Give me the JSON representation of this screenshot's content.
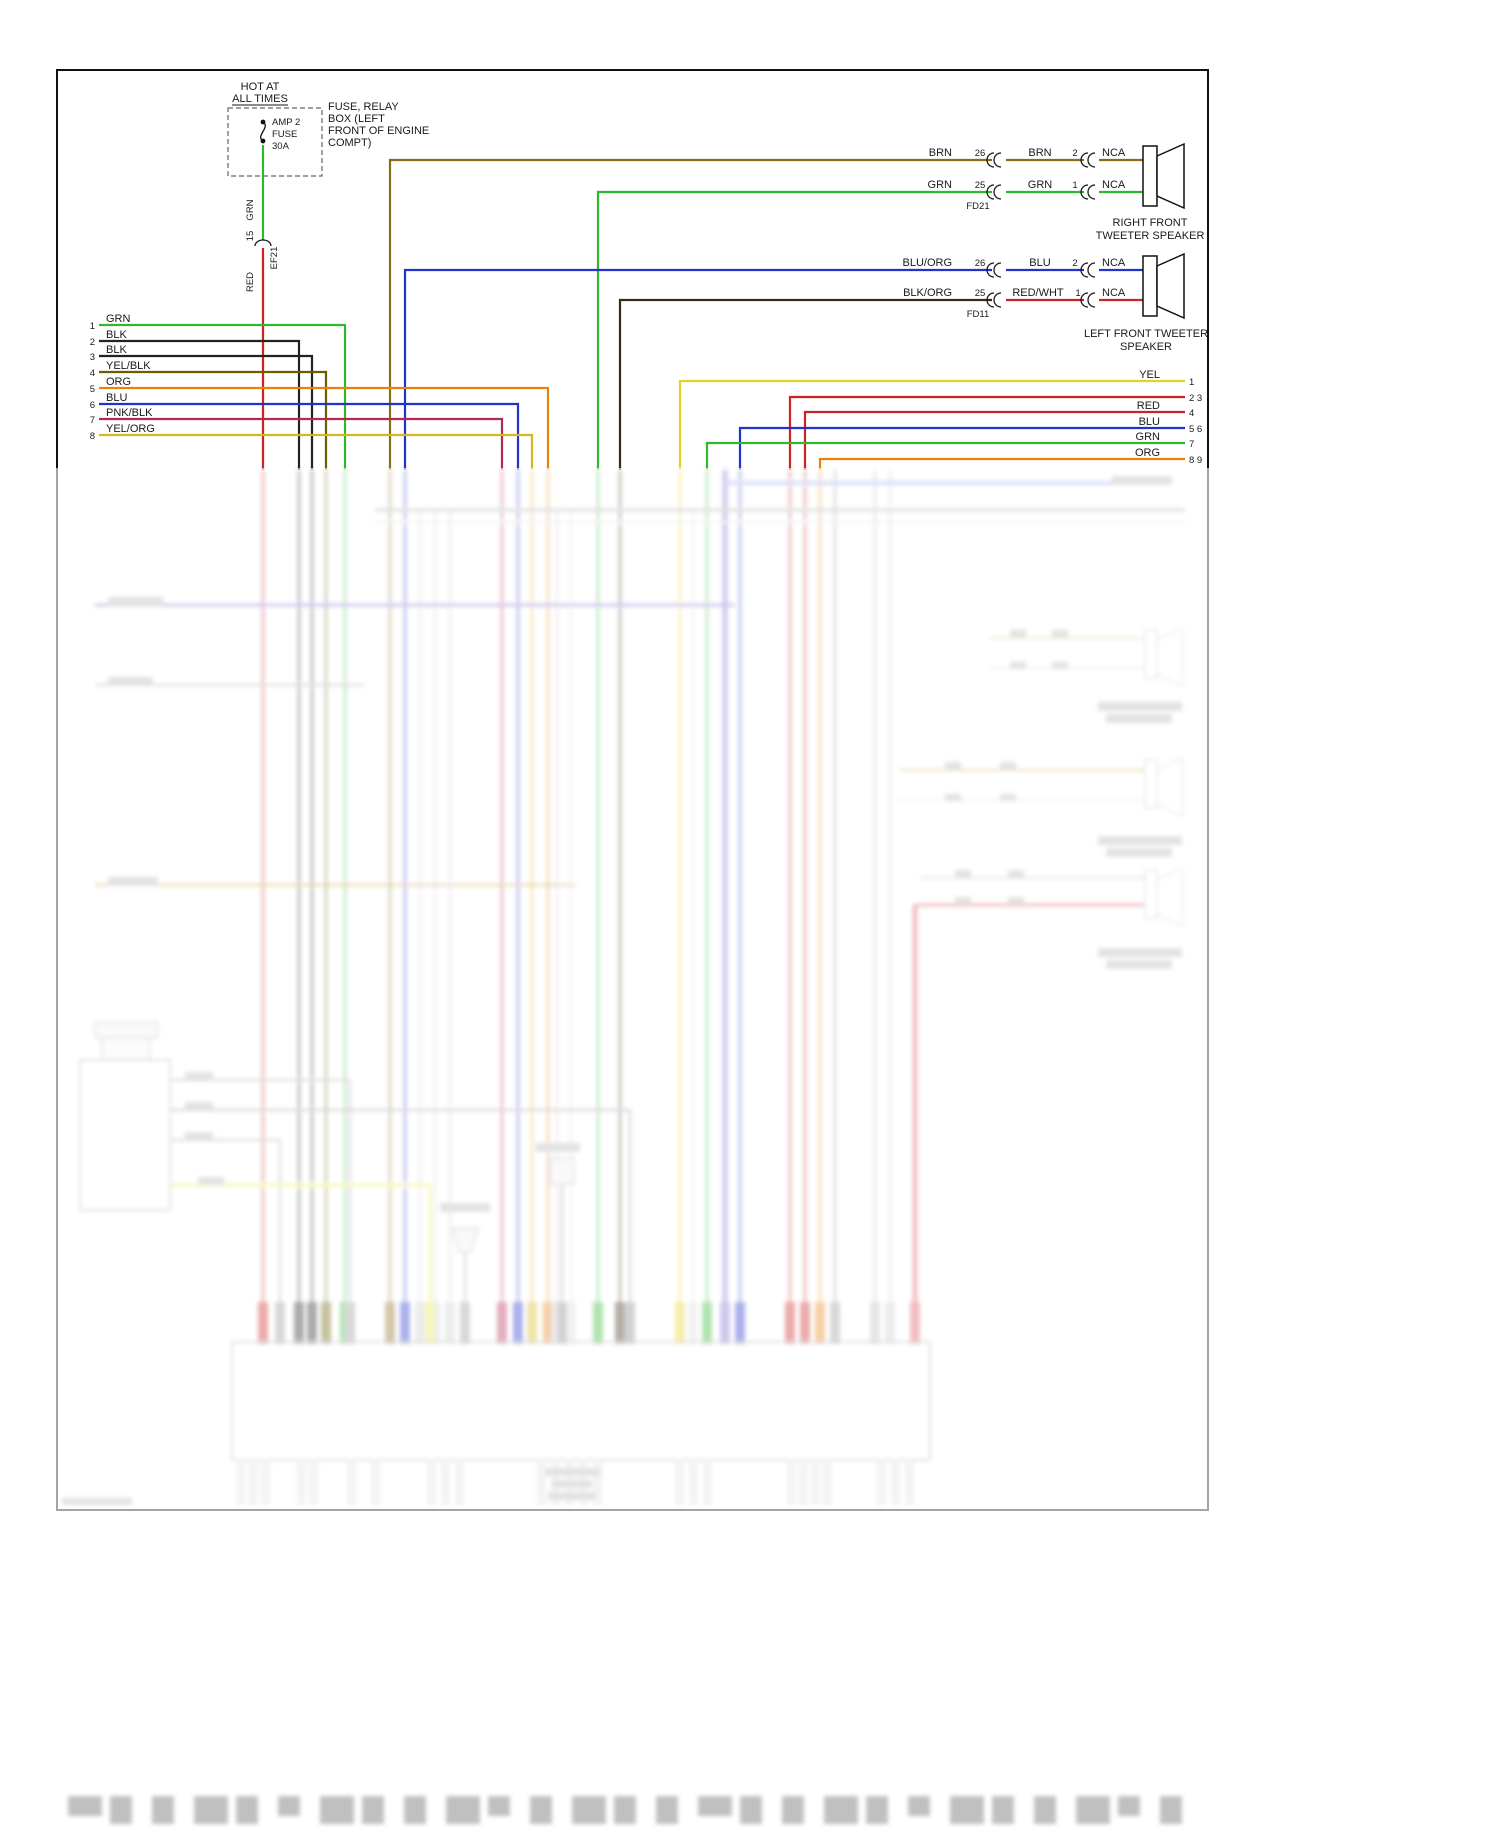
{
  "power": {
    "hot1": "HOT AT",
    "hot2": "ALL TIMES",
    "fuse_name": "AMP 2",
    "fuse_word": "FUSE",
    "fuse_rating": "30A",
    "box1": "FUSE, RELAY",
    "box2": "BOX (LEFT",
    "box3": "FRONT OF ENGINE",
    "box4": "COMPT)",
    "wire_top": "GRN",
    "pin": "15",
    "connector": "EF21",
    "wire_bottom": "RED"
  },
  "tweeters": {
    "rows": [
      {
        "wl": "BRN",
        "pl": "26",
        "wr": "BRN",
        "pr": "2",
        "nca": "NCA"
      },
      {
        "wl": "GRN",
        "pl": "25",
        "wr": "GRN",
        "pr": "1",
        "nca": "NCA",
        "conn": "FD21"
      },
      {
        "wl": "BLU/ORG",
        "pl": "26",
        "wr": "BLU",
        "pr": "2",
        "nca": "NCA"
      },
      {
        "wl": "BLK/ORG",
        "pl": "25",
        "wr": "RED/WHT",
        "pr": "1",
        "nca": "NCA",
        "conn": "FD11"
      }
    ],
    "right_name1": "RIGHT FRONT",
    "right_name2": "TWEETER SPEAKER",
    "left_name1": "LEFT FRONT TWEETER",
    "left_name2": "SPEAKER"
  },
  "left_pins": [
    {
      "n": "1",
      "label": "GRN"
    },
    {
      "n": "2",
      "label": "BLK"
    },
    {
      "n": "3",
      "label": "BLK"
    },
    {
      "n": "4",
      "label": "YEL/BLK"
    },
    {
      "n": "5",
      "label": "ORG"
    },
    {
      "n": "6",
      "label": "BLU"
    },
    {
      "n": "7",
      "label": "PNK/BLK"
    },
    {
      "n": "8",
      "label": "YEL/ORG"
    }
  ],
  "right_pins": [
    {
      "label": "YEL",
      "pins": "1"
    },
    {
      "label": "",
      "pins": "2 3"
    },
    {
      "label": "RED",
      "pins": "4"
    },
    {
      "label": "BLU",
      "pins": "5 6"
    },
    {
      "label": "GRN",
      "pins": "7"
    },
    {
      "label": "ORG",
      "pins": "8 9"
    }
  ],
  "colors": {
    "green": "#2db82d",
    "red": "#cc2222",
    "brown": "#8a6d1a",
    "blue": "#2233cc",
    "orange": "#e8820d",
    "yellow": "#e6d222",
    "yellow_org": "#d4b81e",
    "pink_black": "#b5294e",
    "black": "#222222",
    "yel_blk": "#6b5d00",
    "blk_org": "#3a2a10",
    "indigo": "#8070d0",
    "salmon": "#e05560",
    "gray": "#999999",
    "light_gray": "#cccccc",
    "tan": "#c9b037",
    "gold_pale": "#d8cc88",
    "amber": "#b8860b",
    "yellow_pale": "#e8e84a"
  }
}
